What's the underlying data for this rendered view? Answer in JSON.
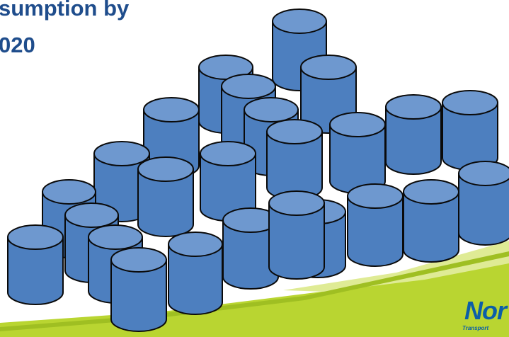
{
  "slide": {
    "title_lines": [
      "sumption by",
      "020"
    ],
    "logo_text": "Nor",
    "logo_subtext": "Transport"
  },
  "colors": {
    "cylinder_fill": "#4d7fbf",
    "cylinder_top": "#6e98cf",
    "cylinder_stroke": "#0a0a0a",
    "title": "#1f4d8c",
    "green_band": "#b9d531",
    "green_light": "#d6e67a",
    "logo": "#0b5ea8"
  },
  "illustration": {
    "icon": "barrel-stack-icon",
    "barrel_count": 26
  }
}
